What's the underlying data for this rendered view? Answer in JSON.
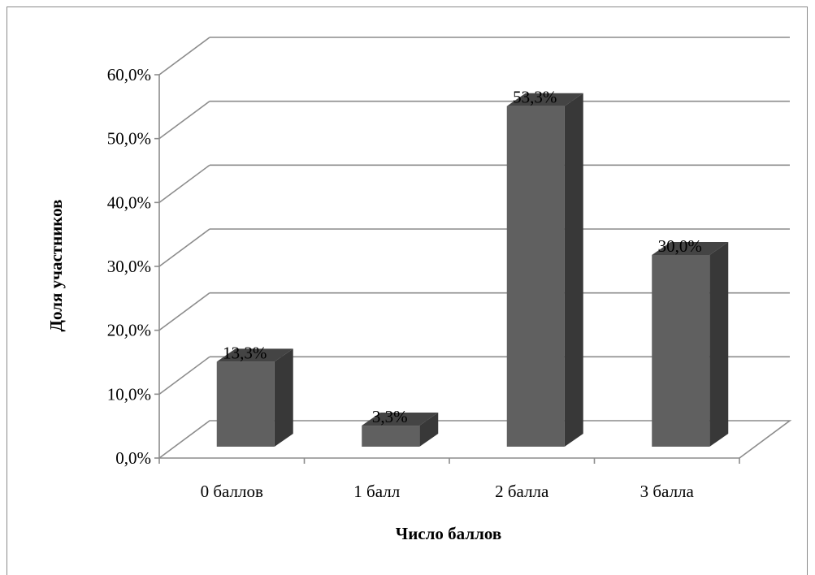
{
  "chart_data": {
    "type": "bar",
    "categories": [
      "0 баллов",
      "1 балл",
      "2 балла",
      "3 балла"
    ],
    "values": [
      13.3,
      3.3,
      53.3,
      30.0
    ],
    "data_labels": [
      "13,3%",
      "3,3%",
      "53,3%",
      "30,0%"
    ],
    "y_ticks": [
      "0,0%",
      "10,0%",
      "20,0%",
      "30,0%",
      "40,0%",
      "50,0%",
      "60,0%"
    ],
    "ylim": [
      0,
      60
    ],
    "ylabel": "Доля участников",
    "xlabel": "Число баллов",
    "grid": true,
    "style": "3d-column",
    "colors": {
      "bar_front": "#606060",
      "bar_top": "#444444",
      "bar_side": "#383838",
      "grid": "#8c8c8c"
    }
  }
}
